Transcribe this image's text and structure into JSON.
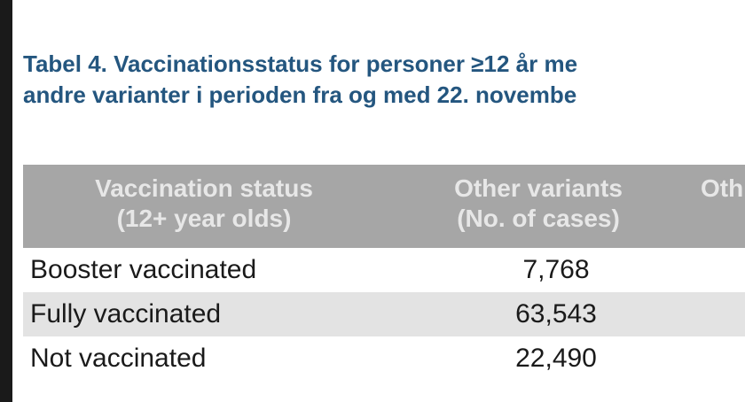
{
  "caption": {
    "line1": "Tabel 4. Vaccinationsstatus for personer ≥12 år me",
    "line2": "andre varianter i perioden fra og med 22. novembe"
  },
  "table": {
    "headers": [
      {
        "line1": "Vaccination status",
        "line2": "(12+ year olds)"
      },
      {
        "line1": "Other variants",
        "line2": "(No. of cases)"
      },
      {
        "line1": "Oth",
        "line2": ""
      }
    ],
    "rows": [
      {
        "label": "Booster vaccinated",
        "value": "7,768"
      },
      {
        "label": "Fully vaccinated",
        "value": "63,543"
      },
      {
        "label": "Not vaccinated",
        "value": "22,490"
      }
    ]
  }
}
